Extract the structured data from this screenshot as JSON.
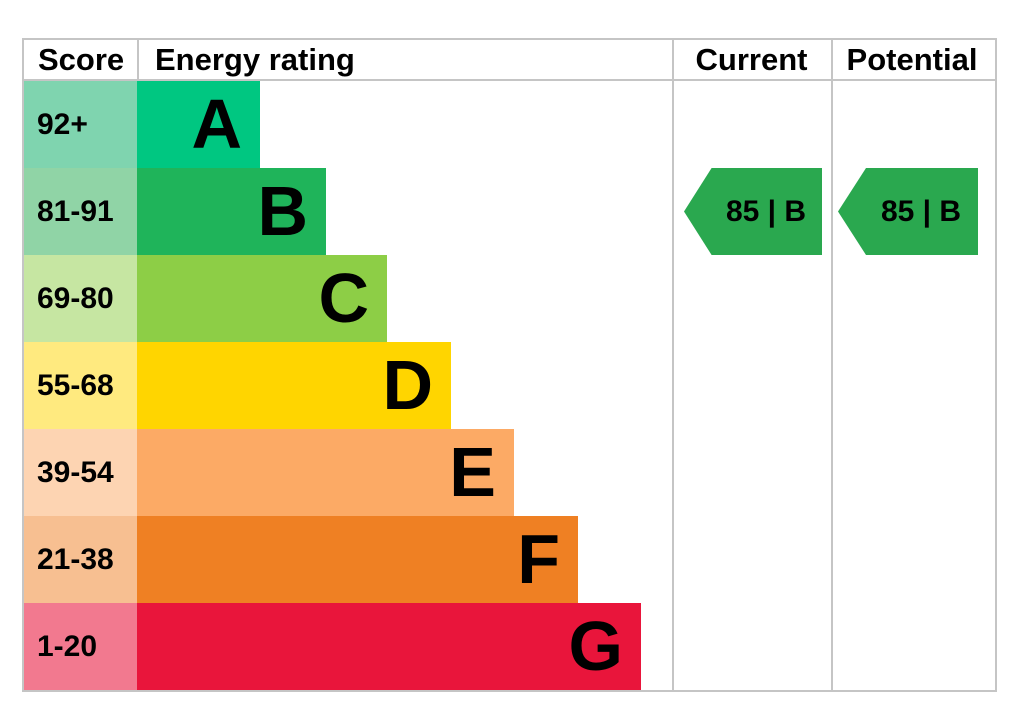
{
  "header": {
    "score": "Score",
    "energy_rating": "Energy rating",
    "current": "Current",
    "potential": "Potential"
  },
  "bands": [
    {
      "letter": "A",
      "score": "92+",
      "color": "#00c781",
      "tint": "#7fd4af"
    },
    {
      "letter": "B",
      "score": "81-91",
      "color": "#1fb45a",
      "tint": "#90d4a6"
    },
    {
      "letter": "C",
      "score": "69-80",
      "color": "#8dce46",
      "tint": "#c6e6a2"
    },
    {
      "letter": "D",
      "score": "55-68",
      "color": "#ffd500",
      "tint": "#ffea7f"
    },
    {
      "letter": "E",
      "score": "39-54",
      "color": "#fcaa65",
      "tint": "#fdd4b2"
    },
    {
      "letter": "F",
      "score": "21-38",
      "color": "#ef8023",
      "tint": "#f7bf91"
    },
    {
      "letter": "G",
      "score": "1-20",
      "color": "#e9153b",
      "tint": "#f2798f"
    }
  ],
  "current": {
    "label": "85 | B",
    "value": 85,
    "rating": "B",
    "color": "#2aa84f"
  },
  "potential": {
    "label": "85 | B",
    "value": 85,
    "rating": "B",
    "color": "#2aa84f"
  },
  "colors": {
    "grid_border": "#c5c5c5",
    "text": "#000000",
    "background": "#ffffff"
  },
  "chart_data": {
    "type": "bar",
    "title": "Energy rating (EPC band chart)",
    "categories": [
      "A",
      "B",
      "C",
      "D",
      "E",
      "F",
      "G"
    ],
    "score_ranges": [
      "92+",
      "81-91",
      "69-80",
      "55-68",
      "39-54",
      "21-38",
      "1-20"
    ],
    "band_colors": [
      "#00c781",
      "#1fb45a",
      "#8dce46",
      "#ffd500",
      "#fcaa65",
      "#ef8023",
      "#e9153b"
    ],
    "bar_relative_widths": [
      1,
      1.54,
      2.03,
      2.55,
      3.07,
      3.59,
      4.1
    ],
    "columns": [
      "Score",
      "Energy rating",
      "Current",
      "Potential"
    ],
    "current_rating": {
      "score": 85,
      "band": "B"
    },
    "potential_rating": {
      "score": 85,
      "band": "B"
    },
    "legend_position": "none",
    "grid": false
  }
}
